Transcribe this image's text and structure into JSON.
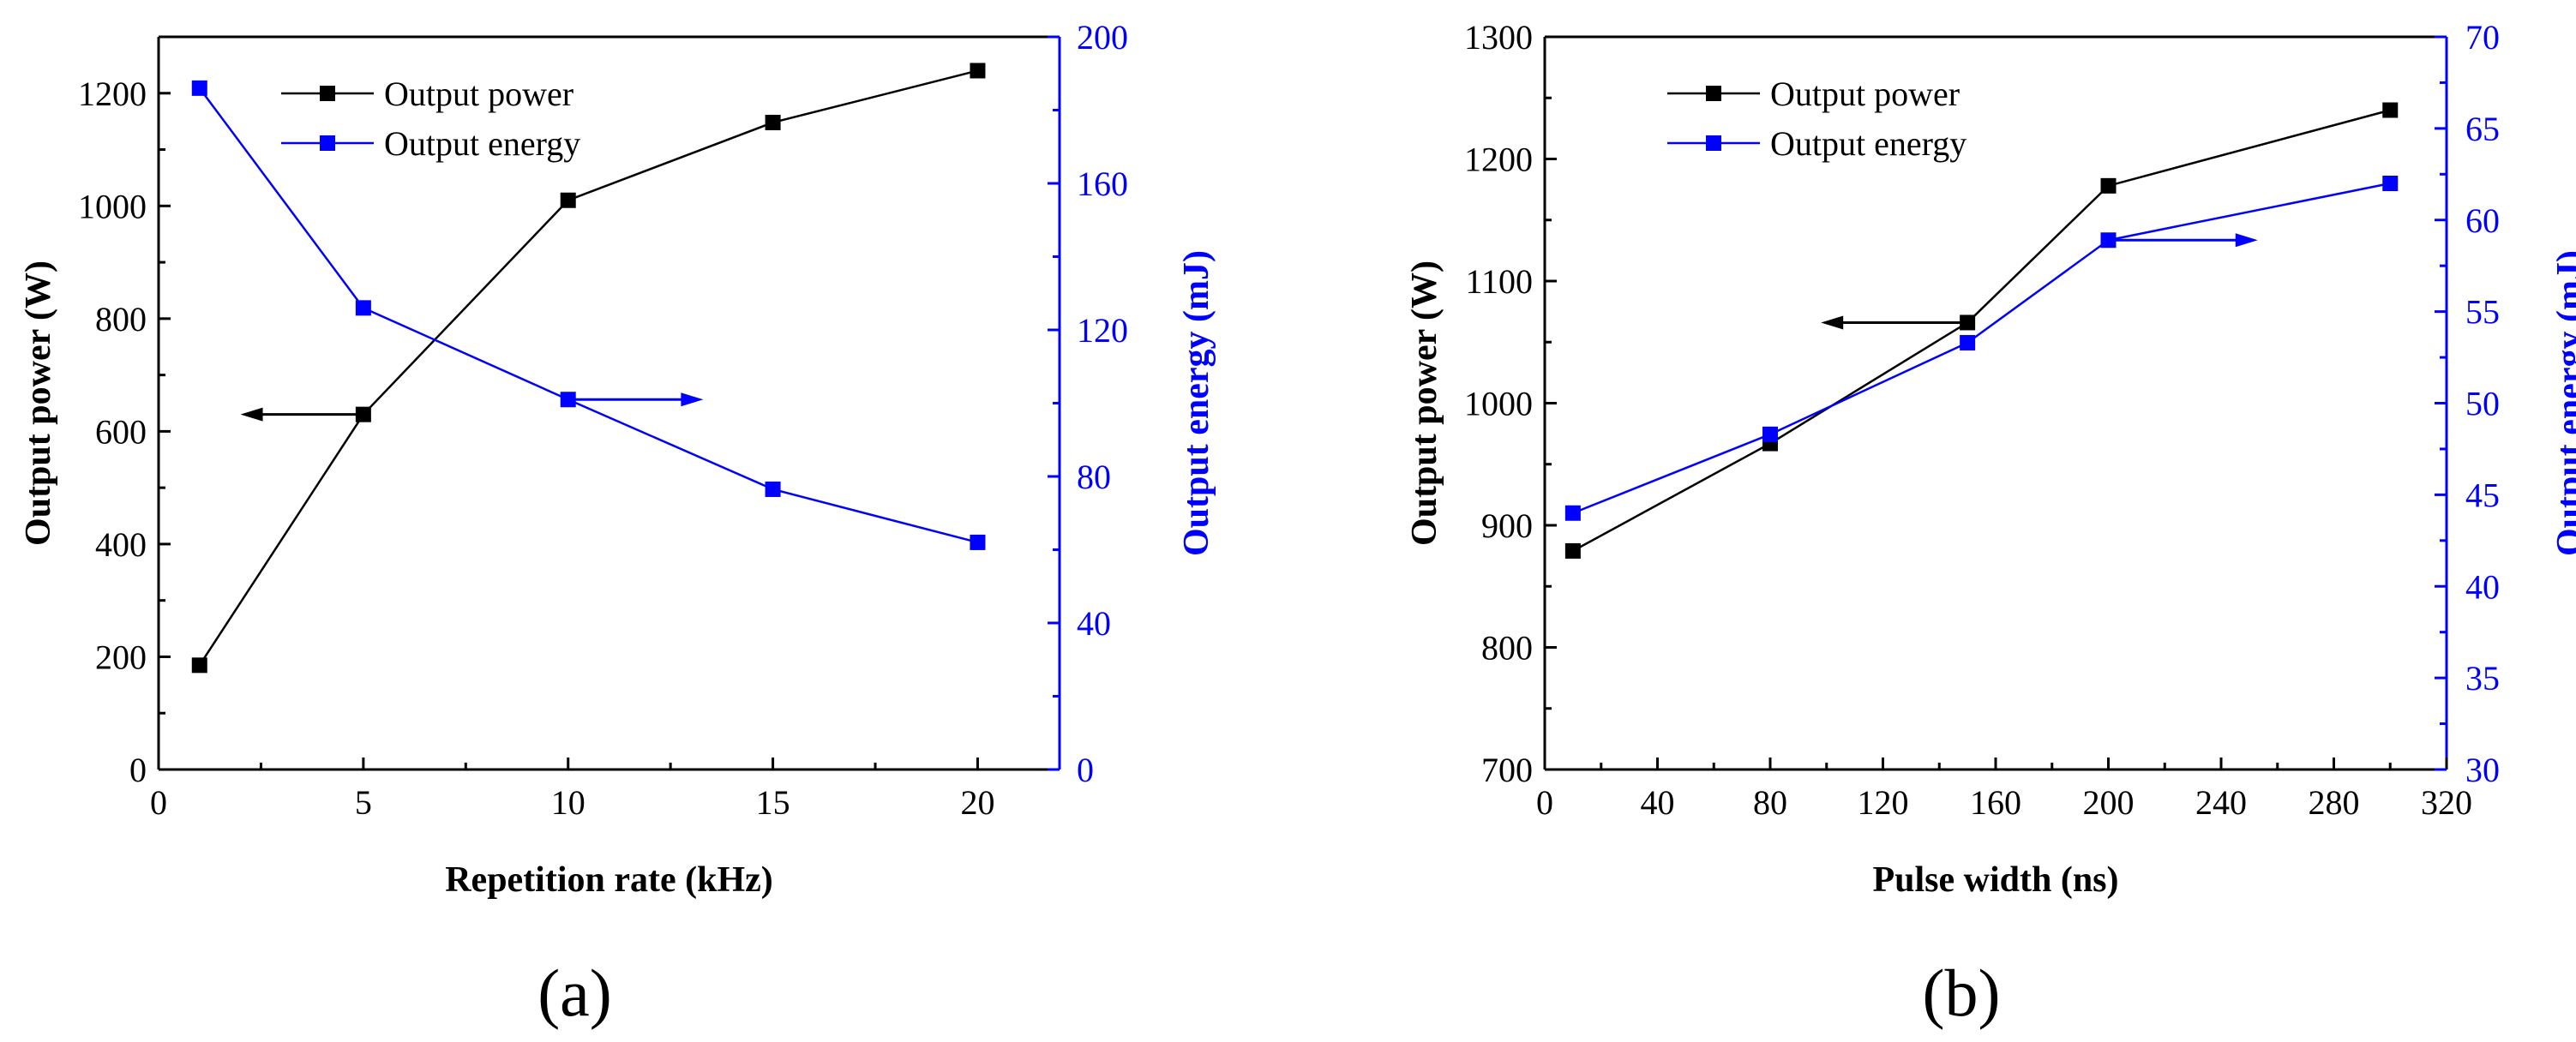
{
  "chart_data": [
    {
      "type": "line",
      "panel_label": "(a)",
      "xlabel": "Repetition rate (kHz)",
      "ylabel_left": "Output power (W)",
      "ylabel_right": "Output energy (mJ)",
      "xlim": [
        0,
        22
      ],
      "xticks": [
        0,
        5,
        10,
        15,
        20
      ],
      "ylim_left": [
        0,
        1300
      ],
      "yticks_left": [
        0,
        200,
        400,
        600,
        800,
        1000,
        1200
      ],
      "ylim_right": [
        0,
        200
      ],
      "yticks_right": [
        0,
        40,
        80,
        120,
        160,
        200
      ],
      "legend_position": "top-left",
      "series": [
        {
          "name": "Output power",
          "axis": "left",
          "color": "#000000",
          "x": [
            1,
            5,
            10,
            15,
            20
          ],
          "values": [
            185,
            630,
            1010,
            1148,
            1240
          ]
        },
        {
          "name": "Output energy",
          "axis": "right",
          "color": "#0000ff",
          "x": [
            1,
            5,
            10,
            15,
            20
          ],
          "values": [
            186,
            126,
            101,
            76.5,
            62
          ]
        }
      ],
      "annotations": [
        {
          "type": "arrow",
          "points_to": "left-axis",
          "color": "#000000",
          "x_from": 5,
          "x_to": 2,
          "y": 630,
          "axis": "left"
        },
        {
          "type": "arrow",
          "points_to": "right-axis",
          "color": "#0000ff",
          "x_from": 10,
          "x_to": 13.3,
          "y": 101,
          "axis": "right"
        }
      ]
    },
    {
      "type": "line",
      "panel_label": "(b)",
      "xlabel": "Pulse width (ns)",
      "ylabel_left": "Output power (W)",
      "ylabel_right": "Output energy (mJ)",
      "xlim": [
        0,
        320
      ],
      "xticks": [
        0,
        40,
        80,
        120,
        160,
        200,
        240,
        280,
        320
      ],
      "ylim_left": [
        700,
        1300
      ],
      "yticks_left": [
        700,
        800,
        900,
        1000,
        1100,
        1200,
        1300
      ],
      "ylim_right": [
        30,
        70
      ],
      "yticks_right": [
        30,
        35,
        40,
        45,
        50,
        55,
        60,
        65,
        70
      ],
      "legend_position": "top-left",
      "series": [
        {
          "name": "Output power",
          "axis": "left",
          "color": "#000000",
          "x": [
            10,
            80,
            150,
            200,
            300
          ],
          "values": [
            879,
            967,
            1066,
            1178,
            1240
          ]
        },
        {
          "name": "Output energy",
          "axis": "right",
          "color": "#0000ff",
          "x": [
            10,
            80,
            150,
            200,
            300
          ],
          "values": [
            44,
            48.3,
            53.3,
            58.9,
            62
          ]
        }
      ],
      "annotations": [
        {
          "type": "arrow",
          "points_to": "left-axis",
          "color": "#000000",
          "x_from": 150,
          "x_to": 98,
          "y": 1066,
          "axis": "left"
        },
        {
          "type": "arrow",
          "points_to": "right-axis",
          "color": "#0000ff",
          "x_from": 200,
          "x_to": 253,
          "y": 58.9,
          "axis": "right"
        }
      ]
    }
  ]
}
